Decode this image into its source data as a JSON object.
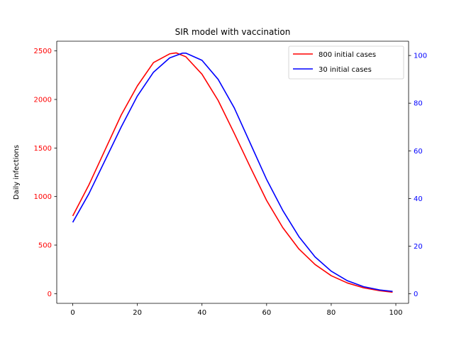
{
  "chart_data": {
    "type": "line",
    "title": "SIR model with vaccination",
    "xlabel": "",
    "ylabel": "Daily infections",
    "xlim": [
      -4.95,
      103.95
    ],
    "ylim_left": [
      -100,
      2600
    ],
    "ylim_right": [
      -4,
      106
    ],
    "x_ticks": [
      0,
      20,
      40,
      60,
      80,
      100
    ],
    "y_ticks_left": [
      0,
      500,
      1000,
      1500,
      2000,
      2500
    ],
    "y_ticks_right": [
      0,
      20,
      40,
      60,
      80,
      100
    ],
    "grid": false,
    "legend_position": "top-right",
    "series": [
      {
        "name": "800 initial cases",
        "axis": "left",
        "color": "#ff0000",
        "x": [
          0,
          5,
          10,
          15,
          20,
          25,
          30,
          32,
          35,
          40,
          45,
          50,
          55,
          60,
          65,
          70,
          75,
          80,
          85,
          90,
          95,
          99
        ],
        "y": [
          800,
          1120,
          1480,
          1840,
          2140,
          2380,
          2470,
          2480,
          2440,
          2260,
          1990,
          1650,
          1300,
          960,
          680,
          460,
          300,
          185,
          110,
          60,
          30,
          15
        ]
      },
      {
        "name": "30 initial cases",
        "axis": "right",
        "color": "#0000ff",
        "x": [
          0,
          5,
          10,
          15,
          20,
          25,
          30,
          34,
          35,
          40,
          45,
          50,
          55,
          60,
          65,
          70,
          75,
          80,
          85,
          90,
          95,
          99
        ],
        "y": [
          30,
          42,
          56,
          70,
          83,
          93,
          99,
          101,
          101,
          98,
          90,
          78,
          63,
          48,
          35,
          24,
          15.5,
          9.5,
          5.5,
          3,
          1.6,
          1
        ]
      }
    ]
  }
}
